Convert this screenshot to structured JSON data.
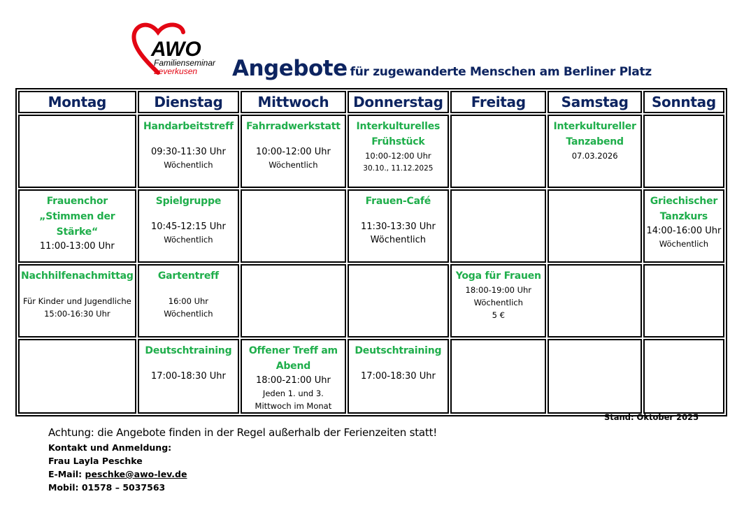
{
  "logo": {
    "brand": "AWO",
    "line1": "Familienseminar",
    "line2": "Leverkusen",
    "color": "#e30613"
  },
  "header": {
    "title": "Angebote",
    "subtitle": "für zugewanderte Menschen am Berliner Platz"
  },
  "colors": {
    "heading": "#0d2460",
    "event_title": "#1fae4b"
  },
  "days": [
    "Montag",
    "Dienstag",
    "Mittwoch",
    "Donnerstag",
    "Freitag",
    "Samstag",
    "Sonntag"
  ],
  "rows": [
    [
      {},
      {
        "title": "Handarbeitstreff",
        "lines": [
          {
            "text": "09:30-11:30 Uhr",
            "kind": "m",
            "after_gap": true
          },
          {
            "text": "Wöchentlich",
            "kind": "s"
          }
        ]
      },
      {
        "title": "Fahrradwerkstatt",
        "lines": [
          {
            "text": "10:00-12:00 Uhr",
            "kind": "m",
            "after_gap": true
          },
          {
            "text": "Wöchentlich",
            "kind": "s"
          }
        ]
      },
      {
        "title": "Interkulturelles Frühstück",
        "lines": [
          {
            "text": "10:00-12:00 Uhr",
            "kind": "s"
          },
          {
            "text": "30.10., 11.12.2025",
            "kind": "s",
            "small": true
          }
        ]
      },
      {},
      {
        "title": "Interkultureller Tanzabend",
        "lines": [
          {
            "text": "07.03.2026",
            "kind": "s"
          }
        ]
      },
      {}
    ],
    [
      {
        "title": "Frauenchor „Stimmen der Stärke“",
        "lines": [
          {
            "text": "11:00-13:00 Uhr",
            "kind": "m"
          }
        ]
      },
      {
        "title": "Spielgruppe",
        "lines": [
          {
            "text": "10:45-12:15 Uhr",
            "kind": "m",
            "after_gap": true
          },
          {
            "text": "Wöchentlich",
            "kind": "s"
          }
        ]
      },
      {},
      {
        "title": "Frauen-Café",
        "lines": [
          {
            "text": "11:30-13:30 Uhr",
            "kind": "m",
            "after_gap": true
          },
          {
            "text": "Wöchentlich",
            "kind": "m"
          }
        ]
      },
      {},
      {},
      {
        "title": "Griechischer Tanzkurs",
        "lines": [
          {
            "text": "14:00-16:00 Uhr",
            "kind": "m"
          },
          {
            "text": "Wöchentlich",
            "kind": "s"
          }
        ]
      }
    ],
    [
      {
        "title": "Nachhilfenachmittag",
        "lines": [
          {
            "text": "Für Kinder und Jugendliche",
            "kind": "s",
            "after_gap": true
          },
          {
            "text": "15:00-16:30 Uhr",
            "kind": "s"
          }
        ]
      },
      {
        "title": "Gartentreff",
        "lines": [
          {
            "text": "16:00 Uhr",
            "kind": "s",
            "after_gap": true
          },
          {
            "text": "Wöchentlich",
            "kind": "s"
          }
        ]
      },
      {},
      {},
      {
        "title": "Yoga für Frauen",
        "lines": [
          {
            "text": "18:00-19:00 Uhr",
            "kind": "s"
          },
          {
            "text": "Wöchentlich",
            "kind": "s"
          },
          {
            "text": "5 €",
            "kind": "s"
          }
        ]
      },
      {},
      {}
    ],
    [
      {},
      {
        "title": "Deutschtraining",
        "lines": [
          {
            "text": "17:00-18:30 Uhr",
            "kind": "m",
            "after_gap": true
          }
        ]
      },
      {
        "title": "Offener Treff am Abend",
        "lines": [
          {
            "text": "18:00-21:00 Uhr",
            "kind": "m"
          },
          {
            "text": "Jeden 1. und 3.",
            "kind": "s"
          },
          {
            "text": "Mittwoch im Monat",
            "kind": "s"
          }
        ]
      },
      {
        "title": "Deutschtraining",
        "lines": [
          {
            "text": "17:00-18:30 Uhr",
            "kind": "m",
            "after_gap": true
          }
        ]
      },
      {},
      {},
      {}
    ]
  ],
  "footer": {
    "stand": "Stand: Oktober 2025",
    "note": "Achtung: die Angebote finden in der Regel außerhalb der Ferienzeiten statt!",
    "contact_heading": "Kontakt und Anmeldung:",
    "contact_name": "Frau Layla Peschke",
    "email_label": "E-Mail: ",
    "email": "peschke@awo-lev.de",
    "mobile": "Mobil: 01578 – 5037563"
  }
}
